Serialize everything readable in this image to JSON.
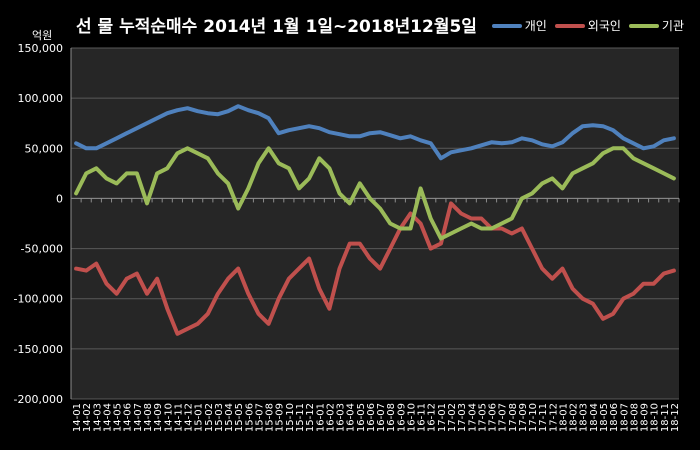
{
  "chart_data": {
    "type": "line",
    "title": "선 물 누적순매수 2014년 1월 1일~2018년12월5일",
    "unit_label": "억원",
    "ylim": [
      -200000,
      150000
    ],
    "yticks": [
      -200000,
      -150000,
      -100000,
      -50000,
      0,
      50000,
      100000,
      150000
    ],
    "ytick_labels": [
      "-200,000",
      "-150,000",
      "-100,000",
      "-50,000",
      "0",
      "50,000",
      "100,000",
      "150,000"
    ],
    "categories": [
      "14-01",
      "14-02",
      "14-03",
      "14-04",
      "14-05",
      "14-06",
      "14-07",
      "14-08",
      "14-09",
      "14-10",
      "14-11",
      "14-12",
      "15-01",
      "15-02",
      "15-03",
      "15-04",
      "15-05",
      "15-06",
      "15-07",
      "15-08",
      "15-09",
      "15-10",
      "15-11",
      "15-12",
      "16-01",
      "16-02",
      "16-03",
      "16-04",
      "16-05",
      "16-06",
      "16-07",
      "16-08",
      "16-09",
      "16-10",
      "16-11",
      "16-12",
      "17-01",
      "17-02",
      "17-03",
      "17-04",
      "17-05",
      "17-06",
      "17-07",
      "17-08",
      "17-09",
      "17-10",
      "17-11",
      "17-12",
      "18-01",
      "18-02",
      "18-03",
      "18-04",
      "18-05",
      "18-06",
      "18-07",
      "18-08",
      "18-09",
      "18-10",
      "18-11",
      "18-12"
    ],
    "grid": true,
    "legend": "top-right",
    "series": [
      {
        "name": "개인",
        "color": "#4f81bd",
        "values": [
          55000,
          50000,
          50000,
          55000,
          60000,
          65000,
          70000,
          75000,
          80000,
          85000,
          88000,
          90000,
          87000,
          85000,
          84000,
          87000,
          92000,
          88000,
          85000,
          80000,
          65000,
          68000,
          70000,
          72000,
          70000,
          66000,
          64000,
          62000,
          62000,
          65000,
          66000,
          63000,
          60000,
          62000,
          58000,
          55000,
          40000,
          46000,
          48000,
          50000,
          53000,
          56000,
          55000,
          56000,
          60000,
          58000,
          54000,
          52000,
          56000,
          65000,
          72000,
          73000,
          72000,
          68000,
          60000,
          55000,
          50000,
          52000,
          58000,
          60000
        ]
      },
      {
        "name": "외국인",
        "color": "#c0504d",
        "values": [
          -70000,
          -72000,
          -65000,
          -85000,
          -95000,
          -80000,
          -75000,
          -95000,
          -80000,
          -110000,
          -135000,
          -130000,
          -125000,
          -115000,
          -95000,
          -80000,
          -70000,
          -95000,
          -115000,
          -125000,
          -100000,
          -80000,
          -70000,
          -60000,
          -90000,
          -110000,
          -70000,
          -45000,
          -45000,
          -60000,
          -70000,
          -50000,
          -30000,
          -15000,
          -25000,
          -50000,
          -45000,
          -5000,
          -15000,
          -20000,
          -20000,
          -30000,
          -30000,
          -35000,
          -30000,
          -50000,
          -70000,
          -80000,
          -70000,
          -90000,
          -100000,
          -105000,
          -120000,
          -115000,
          -100000,
          -95000,
          -85000,
          -85000,
          -75000,
          -72000
        ]
      },
      {
        "name": "기관",
        "color": "#9bbb59",
        "values": [
          5000,
          25000,
          30000,
          20000,
          15000,
          25000,
          25000,
          -5000,
          25000,
          30000,
          45000,
          50000,
          45000,
          40000,
          25000,
          15000,
          -10000,
          10000,
          35000,
          50000,
          35000,
          30000,
          10000,
          20000,
          40000,
          30000,
          5000,
          -5000,
          15000,
          0,
          -10000,
          -25000,
          -30000,
          -30000,
          10000,
          -20000,
          -40000,
          -35000,
          -30000,
          -25000,
          -30000,
          -30000,
          -25000,
          -20000,
          0,
          5000,
          15000,
          20000,
          10000,
          25000,
          30000,
          35000,
          45000,
          50000,
          50000,
          40000,
          35000,
          30000,
          25000,
          20000
        ]
      }
    ]
  }
}
